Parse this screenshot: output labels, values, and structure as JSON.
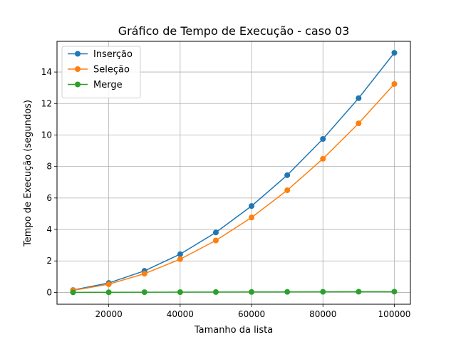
{
  "chart_data": {
    "type": "line",
    "title": "Gráfico de Tempo de Execução - caso 03",
    "xlabel": "Tamanho da lista",
    "ylabel": "Tempo de Execução (segundos)",
    "x": [
      10000,
      20000,
      30000,
      40000,
      50000,
      60000,
      70000,
      80000,
      90000,
      100000
    ],
    "xlim": [
      5500,
      104500
    ],
    "ylim": [
      -0.75,
      15.95
    ],
    "xticks": [
      20000,
      40000,
      60000,
      80000,
      100000
    ],
    "xtick_labels": [
      "20000",
      "40000",
      "60000",
      "80000",
      "100000"
    ],
    "yticks": [
      0,
      2,
      4,
      6,
      8,
      10,
      12,
      14
    ],
    "ytick_labels": [
      "0",
      "2",
      "4",
      "6",
      "8",
      "10",
      "12",
      "14"
    ],
    "grid": true,
    "legend_position": "top-left",
    "series": [
      {
        "name": "Inserção",
        "color": "#1f77b4",
        "values": [
          0.15,
          0.6,
          1.37,
          2.43,
          3.81,
          5.49,
          7.45,
          9.75,
          12.34,
          15.22
        ]
      },
      {
        "name": "Seleção",
        "color": "#ff7f0e",
        "values": [
          0.13,
          0.52,
          1.19,
          2.11,
          3.3,
          4.76,
          6.49,
          8.49,
          10.74,
          13.24
        ]
      },
      {
        "name": "Merge",
        "color": "#2ca02c",
        "values": [
          0.005,
          0.01,
          0.015,
          0.02,
          0.025,
          0.03,
          0.035,
          0.04,
          0.045,
          0.05
        ]
      }
    ]
  }
}
